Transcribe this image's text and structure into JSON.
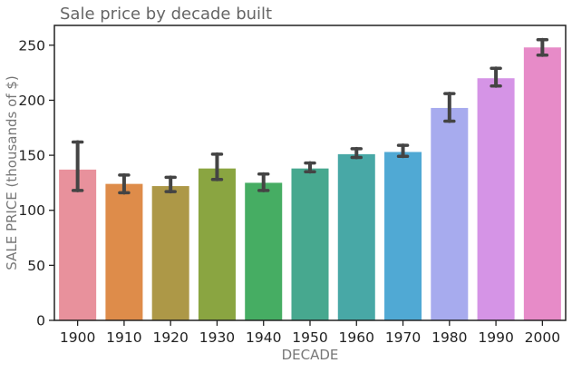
{
  "chart_data": {
    "type": "bar",
    "title": "Sale price by decade built",
    "xlabel": "DECADE",
    "ylabel": "SALE PRICE (thousands of $)",
    "categories": [
      "1900",
      "1910",
      "1920",
      "1930",
      "1940",
      "1950",
      "1960",
      "1970",
      "1980",
      "1990",
      "2000"
    ],
    "values": [
      137,
      124,
      122,
      138,
      125,
      138,
      151,
      153,
      193,
      220,
      248
    ],
    "error_low": [
      118,
      116,
      117,
      128,
      118,
      135,
      148,
      149,
      181,
      213,
      241
    ],
    "error_high": [
      162,
      132,
      130,
      151,
      133,
      143,
      156,
      159,
      206,
      229,
      255
    ],
    "colors": [
      "#e8919c",
      "#de8c4a",
      "#ad9847",
      "#8aa541",
      "#46ad63",
      "#47a88f",
      "#48a8a6",
      "#50a9d4",
      "#a7abee",
      "#d594e6",
      "#e78bc8"
    ],
    "error_bar_color": "#444444",
    "ylim": [
      0,
      268
    ],
    "yticks": [
      0,
      50,
      100,
      150,
      200,
      250
    ],
    "grid": false
  }
}
